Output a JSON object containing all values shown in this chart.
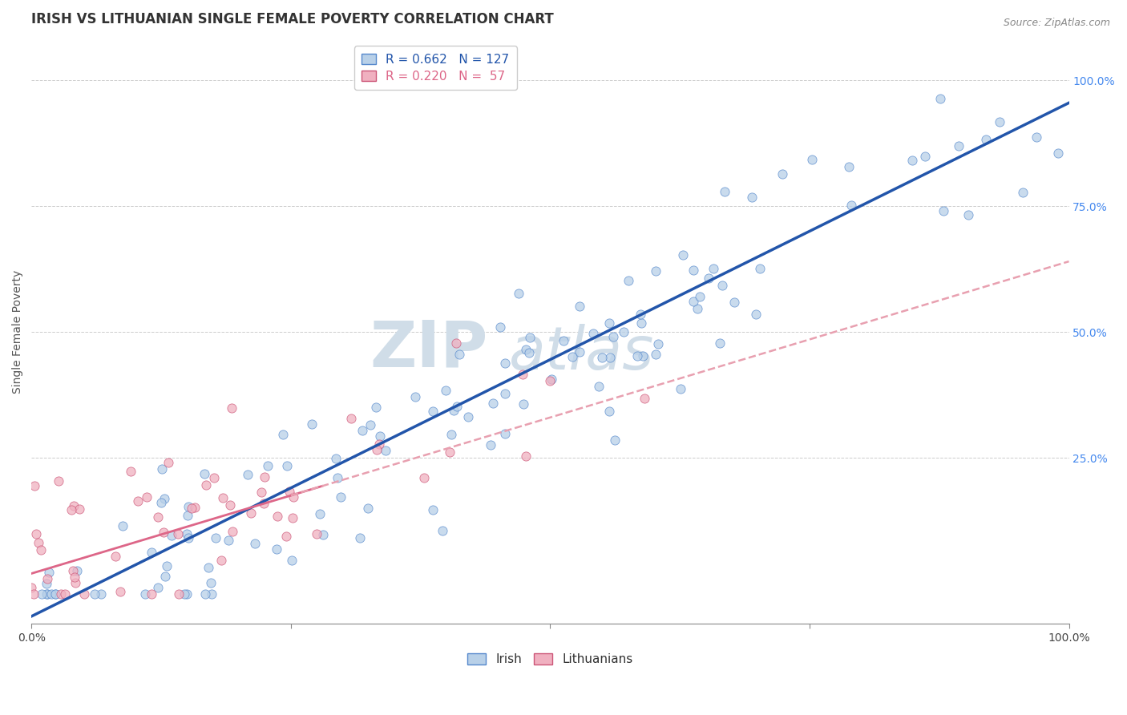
{
  "title": "IRISH VS LITHUANIAN SINGLE FEMALE POVERTY CORRELATION CHART",
  "source": "Source: ZipAtlas.com",
  "ylabel": "Single Female Poverty",
  "legend_irish": "Irish",
  "legend_lithuanians": "Lithuanians",
  "irish_R": 0.662,
  "irish_N": 127,
  "lith_R": 0.22,
  "lith_N": 57,
  "irish_color": "#b8d0e8",
  "irish_edge_color": "#5588cc",
  "irish_line_color": "#2255aa",
  "lith_color": "#f0b0c0",
  "lith_edge_color": "#cc5577",
  "lith_line_color": "#dd6688",
  "lith_dash_color": "#e8a0b0",
  "watermark_zip": "ZIP",
  "watermark_atlas": "atlas",
  "watermark_color": "#d0dde8",
  "grid_color": "#cccccc",
  "right_tick_color": "#4488ee",
  "background_color": "#ffffff",
  "xlim": [
    0,
    1
  ],
  "ylim": [
    -0.08,
    1.08
  ],
  "irish_slope": 1.02,
  "irish_intercept": -0.065,
  "lith_slope": 0.62,
  "lith_intercept": 0.02,
  "title_fontsize": 12,
  "axis_label_fontsize": 10,
  "tick_fontsize": 10
}
